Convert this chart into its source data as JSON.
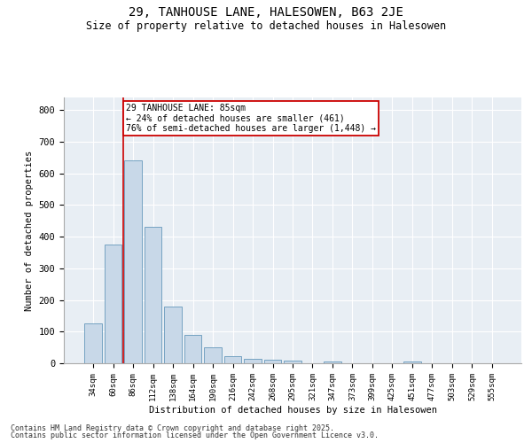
{
  "title": "29, TANHOUSE LANE, HALESOWEN, B63 2JE",
  "subtitle": "Size of property relative to detached houses in Halesowen",
  "xlabel": "Distribution of detached houses by size in Halesowen",
  "ylabel": "Number of detached properties",
  "bar_color": "#c8d8e8",
  "bar_edge_color": "#6699bb",
  "bg_color": "#e8eef4",
  "annotation_line_color": "#cc0000",
  "annotation_box_color": "#cc0000",
  "annotation_text": "29 TANHOUSE LANE: 85sqm\n← 24% of detached houses are smaller (461)\n76% of semi-detached houses are larger (1,448) →",
  "categories": [
    "34sqm",
    "60sqm",
    "86sqm",
    "112sqm",
    "138sqm",
    "164sqm",
    "190sqm",
    "216sqm",
    "242sqm",
    "268sqm",
    "295sqm",
    "321sqm",
    "347sqm",
    "373sqm",
    "399sqm",
    "425sqm",
    "451sqm",
    "477sqm",
    "503sqm",
    "529sqm",
    "555sqm"
  ],
  "values": [
    125,
    375,
    640,
    430,
    180,
    90,
    50,
    22,
    15,
    12,
    8,
    0,
    7,
    0,
    0,
    0,
    5,
    0,
    0,
    0,
    0
  ],
  "ylim": [
    0,
    840
  ],
  "yticks": [
    0,
    100,
    200,
    300,
    400,
    500,
    600,
    700,
    800
  ],
  "footnote1": "Contains HM Land Registry data © Crown copyright and database right 2025.",
  "footnote2": "Contains public sector information licensed under the Open Government Licence v3.0."
}
